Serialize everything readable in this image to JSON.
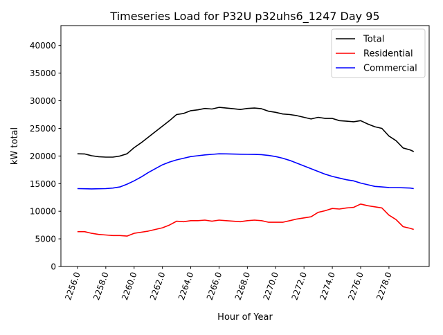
{
  "chart_data": {
    "type": "line",
    "title": "Timeseries Load for P32U p32uhs6_1247  Day 95",
    "xlabel": "Hour of Year",
    "ylabel": "kW total",
    "xlim": [
      2254.83,
      2280.84
    ],
    "ylim": [
      0,
      43600
    ],
    "grid": false,
    "legend_position": "top-right",
    "x_ticks": [
      2256,
      2258,
      2260,
      2262,
      2264,
      2266,
      2268,
      2270,
      2272,
      2274,
      2276,
      2278
    ],
    "x_tick_labels": [
      "2256.0",
      "2258.0",
      "2260.0",
      "2262.0",
      "2264.0",
      "2266.0",
      "2268.0",
      "2270.0",
      "2272.0",
      "2274.0",
      "2276.0",
      "2278.0"
    ],
    "y_ticks": [
      0,
      5000,
      10000,
      15000,
      20000,
      25000,
      30000,
      35000,
      40000
    ],
    "y_tick_labels": [
      "0",
      "5000",
      "10000",
      "15000",
      "20000",
      "25000",
      "30000",
      "35000",
      "40000"
    ],
    "x": [
      2256,
      2256.5,
      2257,
      2257.5,
      2258,
      2258.5,
      2259,
      2259.5,
      2260,
      2260.5,
      2261,
      2261.5,
      2262,
      2262.5,
      2263,
      2263.5,
      2264,
      2264.5,
      2265,
      2265.5,
      2266,
      2266.5,
      2267,
      2267.5,
      2268,
      2268.5,
      2269,
      2269.5,
      2270,
      2270.5,
      2271,
      2271.5,
      2272,
      2272.5,
      2273,
      2273.5,
      2274,
      2274.5,
      2275,
      2275.5,
      2276,
      2276.5,
      2277,
      2277.5,
      2278,
      2278.5,
      2279,
      2279.5,
      2279.75
    ],
    "series": [
      {
        "name": "Total",
        "color": "#000000",
        "values": [
          20400,
          20370,
          20050,
          19870,
          19800,
          19800,
          20000,
          20400,
          21500,
          22400,
          23400,
          24400,
          25400,
          26400,
          27500,
          27700,
          28200,
          28350,
          28600,
          28500,
          28800,
          28680,
          28550,
          28420,
          28600,
          28680,
          28550,
          28100,
          27900,
          27600,
          27500,
          27300,
          27000,
          26700,
          27000,
          26800,
          26800,
          26400,
          26300,
          26200,
          26400,
          25800,
          25300,
          25000,
          23600,
          22780,
          21450,
          21100,
          20800
        ]
      },
      {
        "name": "Residential",
        "color": "#ff0000",
        "values": [
          6300,
          6300,
          6000,
          5800,
          5700,
          5600,
          5600,
          5500,
          6000,
          6200,
          6400,
          6700,
          7000,
          7500,
          8200,
          8100,
          8300,
          8300,
          8400,
          8200,
          8400,
          8300,
          8200,
          8100,
          8300,
          8400,
          8300,
          8000,
          8000,
          8000,
          8300,
          8600,
          8800,
          9000,
          9800,
          10100,
          10500,
          10400,
          10600,
          10700,
          11300,
          11000,
          10800,
          10600,
          9300,
          8500,
          7200,
          6900,
          6700
        ]
      },
      {
        "name": "Commercial",
        "color": "#0000ff",
        "values": [
          14100,
          14070,
          14050,
          14070,
          14100,
          14200,
          14400,
          14900,
          15500,
          16200,
          17000,
          17700,
          18400,
          18900,
          19300,
          19600,
          19900,
          20050,
          20200,
          20300,
          20400,
          20380,
          20350,
          20320,
          20300,
          20280,
          20250,
          20100,
          19900,
          19600,
          19200,
          18700,
          18200,
          17700,
          17200,
          16700,
          16300,
          16000,
          15700,
          15500,
          15100,
          14800,
          14500,
          14400,
          14300,
          14280,
          14250,
          14200,
          14100
        ]
      }
    ]
  }
}
